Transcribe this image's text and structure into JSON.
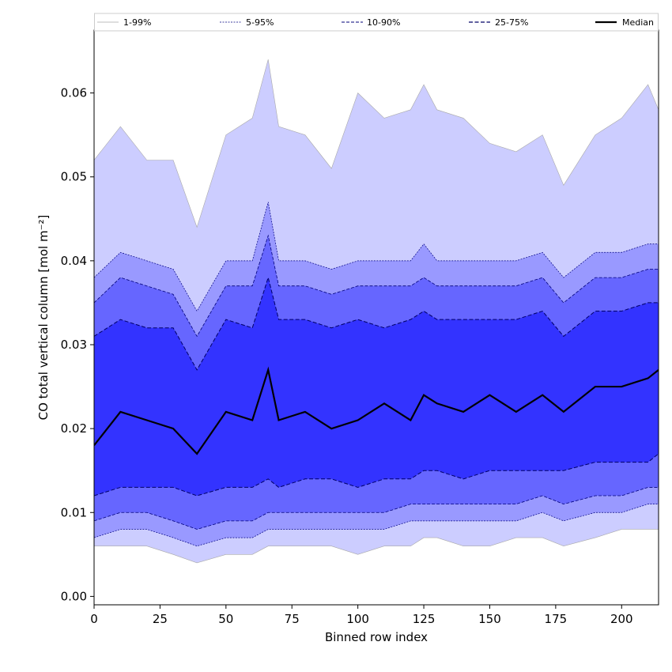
{
  "chart_data": {
    "type": "area",
    "xlabel": "Binned row index",
    "ylabel": "CO total vertical column [mol m⁻²]",
    "xlim": [
      0,
      214
    ],
    "ylim": [
      -0.001,
      0.0675
    ],
    "x_ticks": [
      0,
      25,
      50,
      75,
      100,
      125,
      150,
      175,
      200
    ],
    "x_tick_labels": [
      "0",
      "25",
      "50",
      "75",
      "100",
      "125",
      "150",
      "175",
      "200"
    ],
    "y_ticks": [
      0.0,
      0.01,
      0.02,
      0.03,
      0.04,
      0.05,
      0.06
    ],
    "y_tick_labels": [
      "0.00",
      "0.01",
      "0.02",
      "0.03",
      "0.04",
      "0.05",
      "0.06"
    ],
    "legend_position": "top",
    "x": [
      0,
      10,
      20,
      30,
      39,
      50,
      60,
      66,
      70,
      80,
      90,
      100,
      110,
      120,
      125,
      130,
      140,
      150,
      160,
      170,
      178,
      190,
      200,
      210,
      214
    ],
    "series": [
      {
        "name": "Median",
        "values": [
          0.018,
          0.022,
          0.021,
          0.02,
          0.017,
          0.022,
          0.021,
          0.027,
          0.021,
          0.022,
          0.02,
          0.021,
          0.023,
          0.021,
          0.024,
          0.023,
          0.022,
          0.024,
          0.022,
          0.024,
          0.022,
          0.025,
          0.025,
          0.026,
          0.027
        ]
      },
      {
        "name": "25-75%",
        "lower": [
          0.012,
          0.013,
          0.013,
          0.013,
          0.012,
          0.013,
          0.013,
          0.014,
          0.013,
          0.014,
          0.014,
          0.013,
          0.014,
          0.014,
          0.015,
          0.015,
          0.014,
          0.015,
          0.015,
          0.015,
          0.015,
          0.016,
          0.016,
          0.016,
          0.017
        ],
        "upper": [
          0.031,
          0.033,
          0.032,
          0.032,
          0.027,
          0.033,
          0.032,
          0.038,
          0.033,
          0.033,
          0.032,
          0.033,
          0.032,
          0.033,
          0.034,
          0.033,
          0.033,
          0.033,
          0.033,
          0.034,
          0.031,
          0.034,
          0.034,
          0.035,
          0.035
        ]
      },
      {
        "name": "10-90%",
        "lower": [
          0.009,
          0.01,
          0.01,
          0.009,
          0.008,
          0.009,
          0.009,
          0.01,
          0.01,
          0.01,
          0.01,
          0.01,
          0.01,
          0.011,
          0.011,
          0.011,
          0.011,
          0.011,
          0.011,
          0.012,
          0.011,
          0.012,
          0.012,
          0.013,
          0.013
        ],
        "upper": [
          0.035,
          0.038,
          0.037,
          0.036,
          0.031,
          0.037,
          0.037,
          0.043,
          0.037,
          0.037,
          0.036,
          0.037,
          0.037,
          0.037,
          0.038,
          0.037,
          0.037,
          0.037,
          0.037,
          0.038,
          0.035,
          0.038,
          0.038,
          0.039,
          0.039
        ]
      },
      {
        "name": "5-95%",
        "lower": [
          0.007,
          0.008,
          0.008,
          0.007,
          0.006,
          0.007,
          0.007,
          0.008,
          0.008,
          0.008,
          0.008,
          0.008,
          0.008,
          0.009,
          0.009,
          0.009,
          0.009,
          0.009,
          0.009,
          0.01,
          0.009,
          0.01,
          0.01,
          0.011,
          0.011
        ],
        "upper": [
          0.038,
          0.041,
          0.04,
          0.039,
          0.034,
          0.04,
          0.04,
          0.047,
          0.04,
          0.04,
          0.039,
          0.04,
          0.04,
          0.04,
          0.042,
          0.04,
          0.04,
          0.04,
          0.04,
          0.041,
          0.038,
          0.041,
          0.041,
          0.042,
          0.042
        ]
      },
      {
        "name": "1-99%",
        "lower": [
          0.006,
          0.006,
          0.006,
          0.005,
          0.004,
          0.005,
          0.005,
          0.006,
          0.006,
          0.006,
          0.006,
          0.005,
          0.006,
          0.006,
          0.007,
          0.007,
          0.006,
          0.006,
          0.007,
          0.007,
          0.006,
          0.007,
          0.008,
          0.008,
          0.008
        ],
        "upper": [
          0.052,
          0.056,
          0.052,
          0.052,
          0.044,
          0.055,
          0.057,
          0.064,
          0.056,
          0.055,
          0.051,
          0.06,
          0.057,
          0.058,
          0.061,
          0.058,
          0.057,
          0.054,
          0.053,
          0.055,
          0.049,
          0.055,
          0.057,
          0.061,
          0.058
        ]
      }
    ],
    "colors": {
      "band_1_99": "#cccdff",
      "band_5_95": "#9999ff",
      "band_10_90": "#6666ff",
      "band_25_75": "#3333ff",
      "line_1_99": "#a9a9a9",
      "line_5_95": "#000080",
      "line_10_90": "#00007a",
      "line_25_75": "#000066",
      "median": "#000000"
    }
  },
  "legend": {
    "items": [
      {
        "label": "1-99%",
        "style": "1-99%"
      },
      {
        "label": "5-95%",
        "style": "5-95%"
      },
      {
        "label": "10-90%",
        "style": "10-90%"
      },
      {
        "label": "25-75%",
        "style": "25-75%"
      },
      {
        "label": "Median",
        "style": "Median"
      }
    ]
  }
}
